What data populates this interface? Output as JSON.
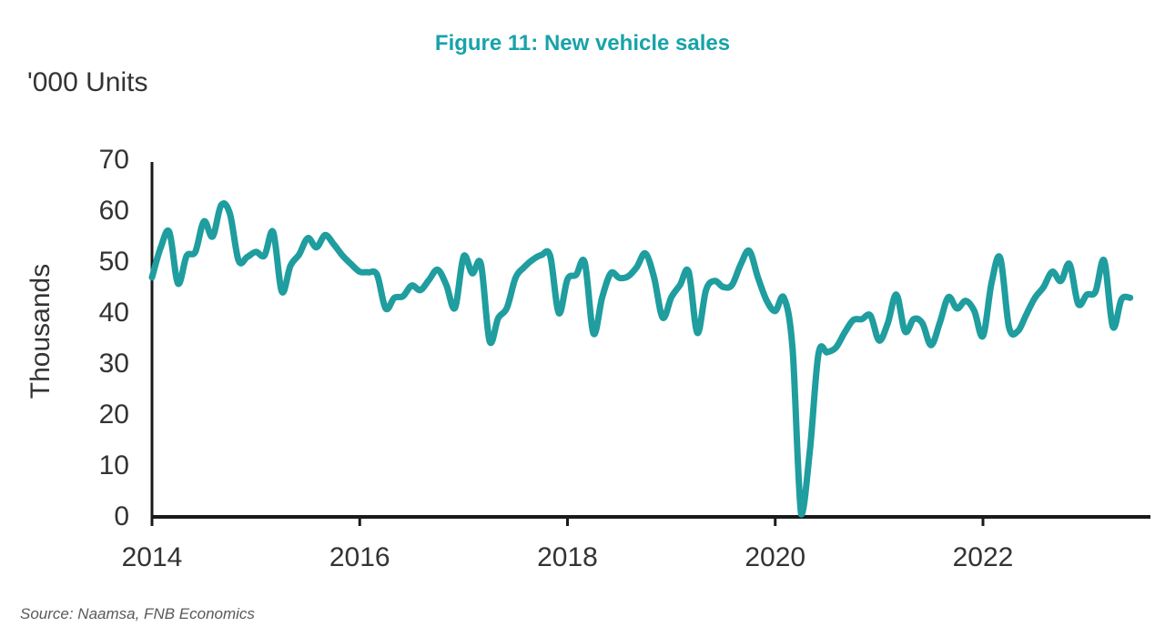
{
  "page": {
    "title": "Figure 11: New vehicle sales",
    "units_label": "'000 Units",
    "source": "Source: Naamsa, FNB Economics"
  },
  "colors": {
    "title": "#17a3a9",
    "line": "#1f9d9f",
    "axis": "#1a1a1a",
    "text": "#333333",
    "source_text": "#595959"
  },
  "chart_data": {
    "type": "line",
    "title": "Figure 11: New vehicle sales",
    "units": "'000 Units",
    "ylabel": "Thousands",
    "xlabel": "",
    "ylim": [
      0,
      70
    ],
    "y_ticks": [
      0,
      10,
      20,
      30,
      40,
      50,
      60,
      70
    ],
    "x_tick_labels": [
      "2014",
      "2016",
      "2018",
      "2020",
      "2022"
    ],
    "grid": false,
    "legend": "none",
    "frequency": "monthly",
    "start": "2014-01",
    "end": "2023-06",
    "series": [
      {
        "name": "New vehicle sales ('000 units)",
        "values": [
          47.0,
          52.8,
          55.9,
          45.8,
          51.2,
          52.0,
          58.0,
          55.0,
          61.2,
          59.5,
          50.3,
          51.0,
          52.0,
          51.3,
          55.9,
          44.2,
          49.3,
          51.5,
          54.7,
          52.9,
          55.3,
          53.5,
          51.3,
          49.6,
          48.1,
          48.0,
          47.5,
          40.9,
          43.0,
          43.3,
          45.4,
          44.5,
          46.5,
          48.5,
          45.5,
          41.0,
          51.1,
          47.8,
          49.6,
          34.5,
          39.0,
          41.0,
          46.9,
          49.0,
          50.5,
          51.4,
          51.2,
          40.0,
          46.6,
          47.5,
          49.9,
          36.0,
          43.0,
          47.8,
          46.9,
          47.2,
          49.0,
          51.7,
          47.0,
          39.1,
          43.1,
          45.5,
          48.1,
          36.1,
          44.5,
          46.3,
          45.1,
          45.5,
          49.5,
          52.2,
          47.0,
          42.5,
          40.4,
          43.0,
          33.0,
          0.5,
          13.0,
          32.0,
          32.3,
          33.2,
          36.1,
          38.6,
          38.8,
          39.5,
          34.6,
          38.0,
          43.6,
          36.4,
          38.8,
          38.0,
          33.7,
          38.0,
          43.1,
          40.9,
          42.4,
          40.4,
          35.5,
          46.0,
          50.8,
          37.3,
          36.4,
          39.7,
          43.0,
          45.1,
          48.1,
          46.3,
          49.6,
          41.8,
          43.6,
          44.2,
          50.3,
          37.3,
          42.7,
          43.0
        ]
      }
    ]
  }
}
